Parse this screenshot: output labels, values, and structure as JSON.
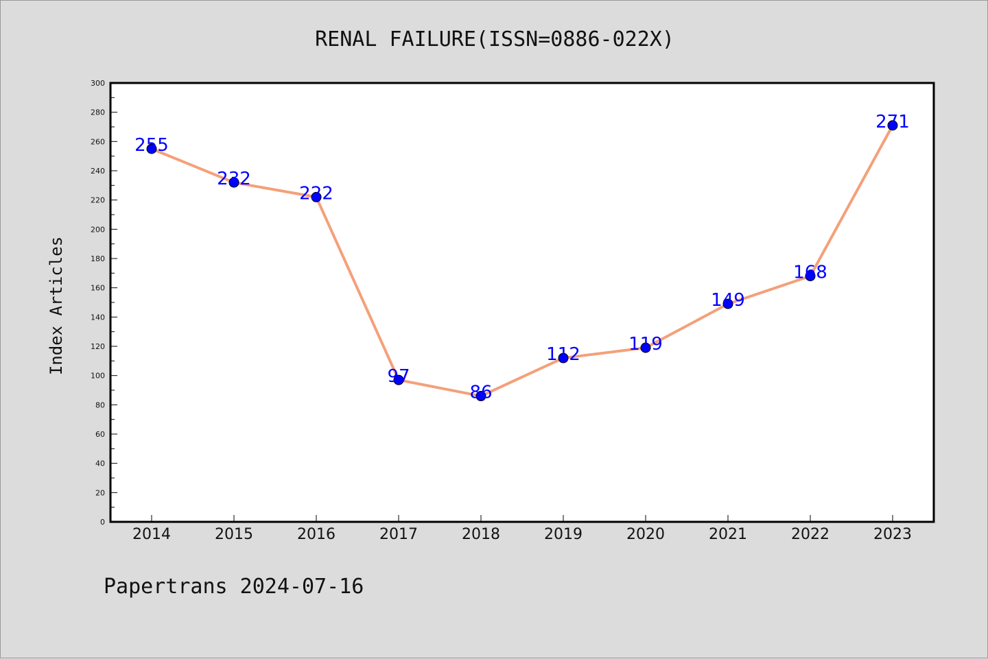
{
  "chart_data": {
    "type": "line",
    "title": "RENAL FAILURE(ISSN=0886-022X)",
    "ylabel": "Index Articles",
    "xlabel": "",
    "categories": [
      "2014",
      "2015",
      "2016",
      "2017",
      "2018",
      "2019",
      "2020",
      "2021",
      "2022",
      "2023"
    ],
    "values": [
      255,
      232,
      222,
      97,
      86,
      112,
      119,
      149,
      168,
      271
    ],
    "data_labels": [
      "255",
      "232",
      "222",
      "97",
      "86",
      "112",
      "119",
      "149",
      "168",
      "271"
    ],
    "ylim": [
      0,
      300
    ],
    "y_ticks": [
      0,
      20,
      40,
      60,
      80,
      100,
      120,
      140,
      160,
      180,
      200,
      220,
      240,
      260,
      280,
      300
    ],
    "grid": false,
    "legend": "none",
    "colors": {
      "line": "#f4a07a",
      "marker_fill": "#0000ff",
      "marker_edge": "#000000",
      "data_label": "#0000ff",
      "plot_background": "#ffffff",
      "figure_background": "#dcdcdc"
    }
  },
  "footer": "Papertrans 2024-07-16"
}
